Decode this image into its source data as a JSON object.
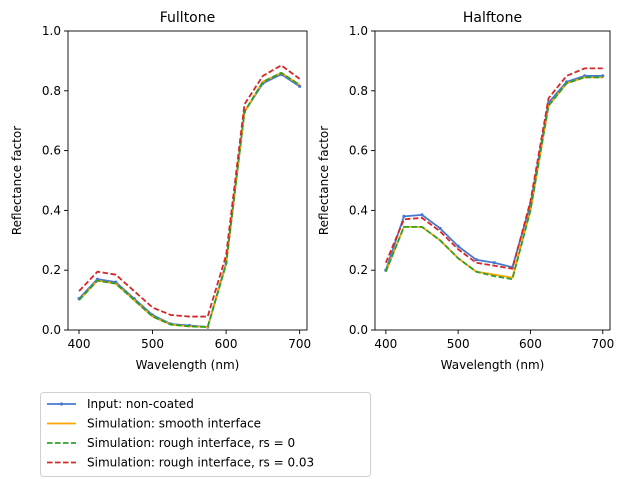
{
  "chart_data": [
    {
      "type": "line",
      "title": "Fulltone",
      "xlabel": "Wavelength (nm)",
      "ylabel": "Reflectance factor",
      "xlim": [
        385,
        710
      ],
      "ylim": [
        0.0,
        1.0
      ],
      "xticks": [
        400,
        500,
        600,
        700
      ],
      "yticks": [
        0.0,
        0.2,
        0.4,
        0.6,
        0.8,
        1.0
      ],
      "xtick_labels": [
        "400",
        "500",
        "600",
        "700"
      ],
      "ytick_labels": [
        "0.0",
        "0.2",
        "0.4",
        "0.6",
        "0.8",
        "1.0"
      ],
      "grid": false,
      "x": [
        400,
        425,
        450,
        475,
        500,
        525,
        550,
        575,
        600,
        625,
        650,
        675,
        700
      ],
      "series": [
        {
          "name": "Input: non-coated",
          "color": "#4878d0",
          "dash": "solid",
          "marker": true,
          "values": [
            0.105,
            0.17,
            0.16,
            0.105,
            0.05,
            0.02,
            0.015,
            0.01,
            0.225,
            0.73,
            0.825,
            0.855,
            0.815
          ]
        },
        {
          "name": "Simulation: smooth interface",
          "color": "#ffa500",
          "dash": "solid",
          "marker": false,
          "values": [
            0.1,
            0.165,
            0.155,
            0.1,
            0.045,
            0.018,
            0.012,
            0.01,
            0.22,
            0.73,
            0.83,
            0.86,
            0.82
          ]
        },
        {
          "name": "Simulation: rough interface, rs = 0",
          "color": "#2ca02c",
          "dash": "dashed",
          "marker": false,
          "values": [
            0.1,
            0.165,
            0.155,
            0.1,
            0.045,
            0.018,
            0.012,
            0.01,
            0.22,
            0.73,
            0.83,
            0.86,
            0.82
          ]
        },
        {
          "name": "Simulation: rough interface, rs = 0.03",
          "color": "#d62728",
          "dash": "dashed",
          "marker": false,
          "values": [
            0.13,
            0.195,
            0.185,
            0.13,
            0.075,
            0.05,
            0.045,
            0.045,
            0.25,
            0.755,
            0.85,
            0.885,
            0.84
          ]
        }
      ]
    },
    {
      "type": "line",
      "title": "Halftone",
      "xlabel": "Wavelength (nm)",
      "ylabel": "Reflectance factor",
      "xlim": [
        385,
        710
      ],
      "ylim": [
        0.0,
        1.0
      ],
      "xticks": [
        400,
        500,
        600,
        700
      ],
      "yticks": [
        0.0,
        0.2,
        0.4,
        0.6,
        0.8,
        1.0
      ],
      "xtick_labels": [
        "400",
        "500",
        "600",
        "700"
      ],
      "ytick_labels": [
        "0.0",
        "0.2",
        "0.4",
        "0.6",
        "0.8",
        "1.0"
      ],
      "grid": false,
      "x": [
        400,
        425,
        450,
        475,
        500,
        525,
        550,
        575,
        600,
        625,
        650,
        675,
        700
      ],
      "series": [
        {
          "name": "Input: non-coated",
          "color": "#4878d0",
          "dash": "solid",
          "marker": true,
          "values": [
            0.2,
            0.38,
            0.385,
            0.34,
            0.28,
            0.235,
            0.225,
            0.21,
            0.42,
            0.76,
            0.83,
            0.85,
            0.85
          ]
        },
        {
          "name": "Simulation: smooth interface",
          "color": "#ffa500",
          "dash": "solid",
          "marker": false,
          "values": [
            0.195,
            0.345,
            0.345,
            0.3,
            0.24,
            0.195,
            0.185,
            0.175,
            0.4,
            0.75,
            0.825,
            0.845,
            0.845
          ]
        },
        {
          "name": "Simulation: rough interface, rs = 0",
          "color": "#2ca02c",
          "dash": "dashed",
          "marker": false,
          "values": [
            0.195,
            0.345,
            0.345,
            0.3,
            0.24,
            0.195,
            0.18,
            0.17,
            0.4,
            0.75,
            0.825,
            0.845,
            0.845
          ]
        },
        {
          "name": "Simulation: rough interface, rs = 0.03",
          "color": "#d62728",
          "dash": "dashed",
          "marker": false,
          "values": [
            0.225,
            0.37,
            0.375,
            0.33,
            0.27,
            0.225,
            0.215,
            0.205,
            0.43,
            0.775,
            0.85,
            0.875,
            0.875
          ]
        }
      ]
    }
  ],
  "legend": {
    "placement": "below",
    "entries": [
      {
        "label": "Input: non-coated",
        "color": "#4878d0",
        "dash": "solid",
        "marker": true
      },
      {
        "label": "Simulation: smooth interface",
        "color": "#ffa500",
        "dash": "solid",
        "marker": false
      },
      {
        "label": "Simulation: rough interface, rs = 0",
        "color": "#2ca02c",
        "dash": "dashed",
        "marker": false
      },
      {
        "label": "Simulation: rough interface, rs = 0.03",
        "color": "#d62728",
        "dash": "dashed",
        "marker": false
      }
    ]
  }
}
